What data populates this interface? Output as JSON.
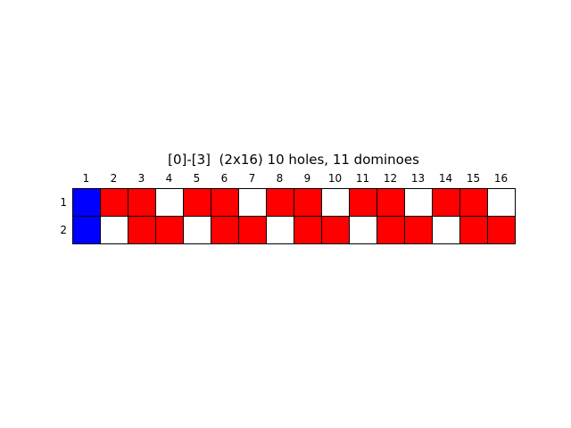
{
  "board": {
    "title": "[0]-[3]  (2x16) 10 holes, 11 dominoes",
    "rows": 2,
    "cols": 16,
    "col_labels": [
      "1",
      "2",
      "3",
      "4",
      "5",
      "6",
      "7",
      "8",
      "9",
      "10",
      "11",
      "12",
      "13",
      "14",
      "15",
      "16"
    ],
    "row_labels": [
      "1",
      "2"
    ],
    "colors": {
      "B": "#0000ff",
      "R": "#ff0000",
      "W": "#ffffff"
    },
    "cells": [
      [
        "B",
        "R",
        "R",
        "W",
        "R",
        "R",
        "W",
        "R",
        "R",
        "W",
        "R",
        "R",
        "W",
        "R",
        "R",
        "W"
      ],
      [
        "B",
        "W",
        "R",
        "R",
        "W",
        "R",
        "R",
        "W",
        "R",
        "R",
        "W",
        "R",
        "R",
        "W",
        "R",
        "R"
      ]
    ]
  }
}
